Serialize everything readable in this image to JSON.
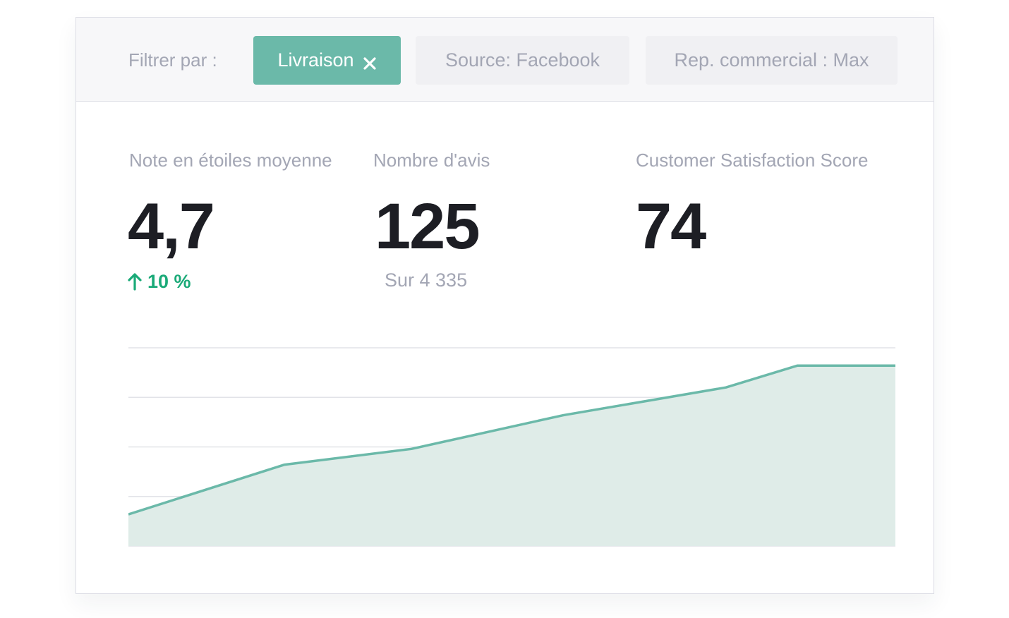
{
  "filters": {
    "label": "Filtrer par :",
    "active": {
      "label": "Livraison",
      "icon": "close-icon"
    },
    "chips": [
      {
        "label": "Source: Facebook"
      },
      {
        "label": "Rep. commercial : Max"
      }
    ]
  },
  "metrics": {
    "rating": {
      "label": "Note en étoiles moyenne",
      "value": "4,7",
      "trend": "10 %",
      "trend_icon": "arrow-up-icon"
    },
    "reviews": {
      "label": "Nombre d'avis",
      "value": "125",
      "sub": "Sur 4 335"
    },
    "csat": {
      "label": "Customer Satisfaction Score",
      "value": "74"
    }
  },
  "colors": {
    "accent": "#6bb9a9",
    "area_fill": "#dfece8",
    "trend_positive": "#1aaa78",
    "gridline": "#e2e3e8"
  },
  "chart_data": {
    "type": "area",
    "x": [
      0,
      1,
      2,
      3,
      4,
      5,
      6,
      7
    ],
    "values": [
      0.16,
      0.41,
      0.49,
      0.66,
      0.8,
      0.91,
      0.91,
      0.91
    ],
    "breakpoints": [
      0,
      0.203,
      0.369,
      0.567,
      0.779,
      0.872,
      0.92,
      1
    ],
    "ylim": [
      0,
      1
    ],
    "gridlines": 5,
    "grid": true,
    "title": "",
    "xlabel": "",
    "ylabel": ""
  }
}
